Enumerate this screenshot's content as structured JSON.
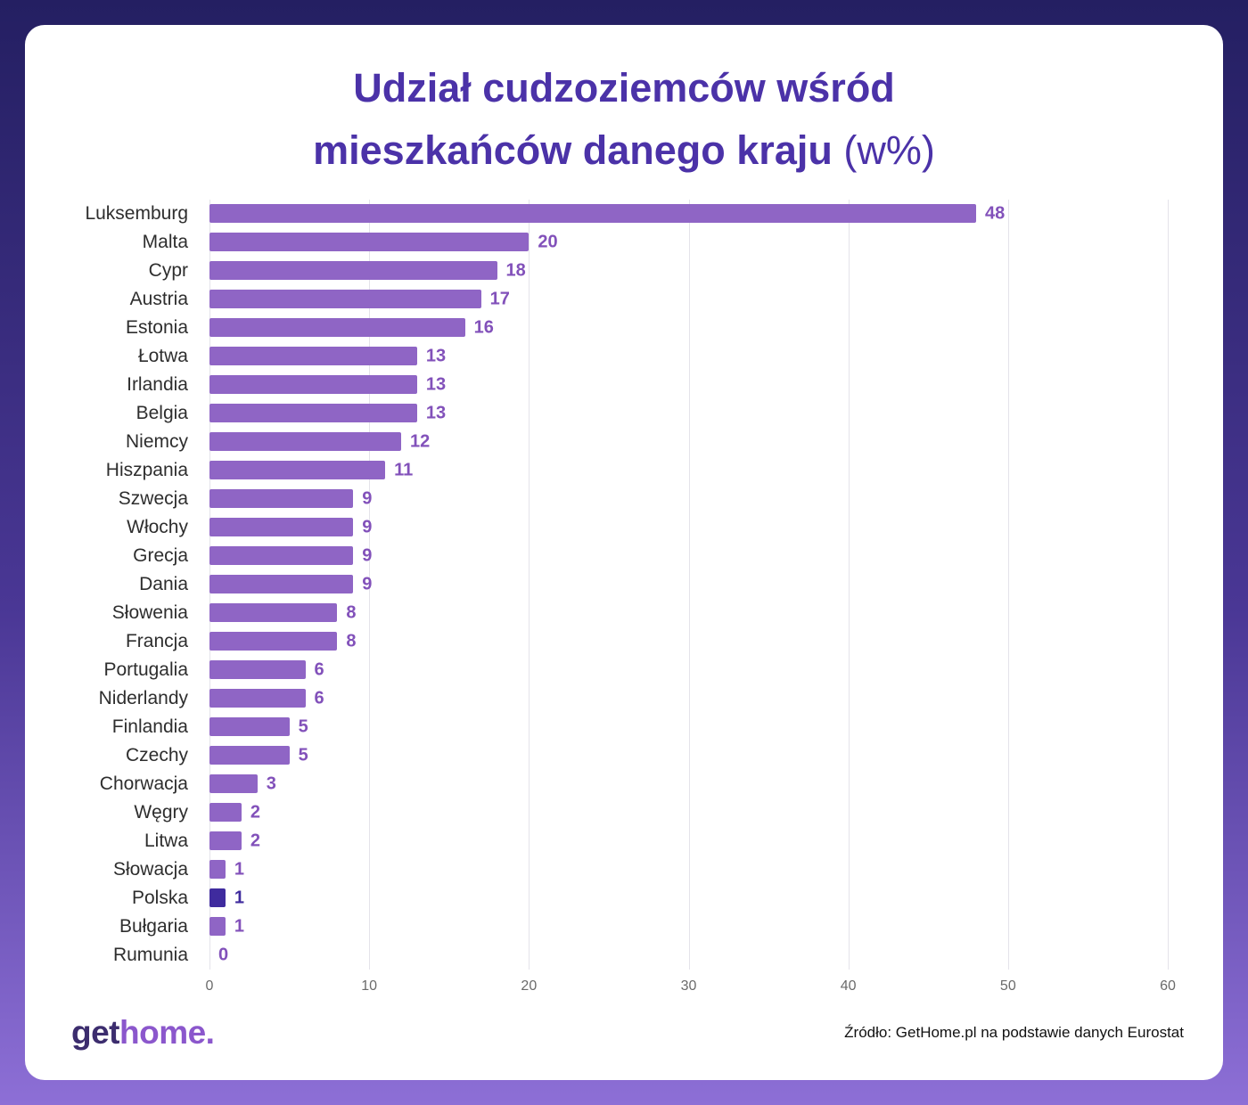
{
  "title": {
    "line1": "Udział cudzoziemców wśród",
    "line2": "mieszkańców danego kraju",
    "suffix": "(w%)"
  },
  "chart_data": {
    "type": "bar",
    "orientation": "horizontal",
    "title": "Udział cudzoziemców wśród mieszkańców danego kraju (w%)",
    "categories": [
      "Luksemburg",
      "Malta",
      "Cypr",
      "Austria",
      "Estonia",
      "Łotwa",
      "Irlandia",
      "Belgia",
      "Niemcy",
      "Hiszpania",
      "Szwecja",
      "Włochy",
      "Grecja",
      "Dania",
      "Słowenia",
      "Francja",
      "Portugalia",
      "Niderlandy",
      "Finlandia",
      "Czechy",
      "Chorwacja",
      "Węgry",
      "Litwa",
      "Słowacja",
      "Polska",
      "Bułgaria",
      "Rumunia"
    ],
    "values": [
      48,
      20,
      18,
      17,
      16,
      13,
      13,
      13,
      12,
      11,
      9,
      9,
      9,
      9,
      8,
      8,
      6,
      6,
      5,
      5,
      3,
      2,
      2,
      1,
      1,
      1,
      0
    ],
    "highlight_category": "Polska",
    "xlim": [
      0,
      60
    ],
    "xticks": [
      0,
      10,
      20,
      30,
      40,
      50,
      60
    ],
    "grid": true,
    "legend": "none",
    "colors": {
      "bar": "#8f65c5",
      "highlight": "#3f2b9e",
      "value_label": "#8251ba",
      "title": "#4b32a8"
    }
  },
  "footer": {
    "logo_get": "get",
    "logo_home": "home.",
    "source": "Źródło: GetHome.pl na podstawie danych Eurostat"
  }
}
